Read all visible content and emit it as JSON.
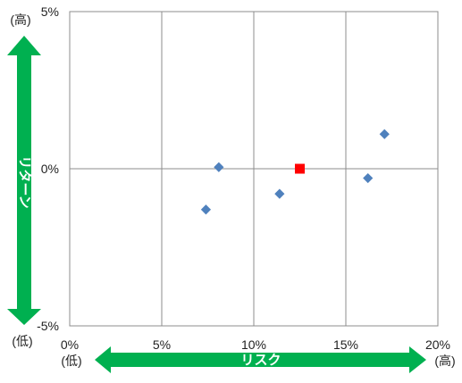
{
  "chart_data": {
    "type": "scatter",
    "title": "",
    "xlabel": "リスク",
    "ylabel": "リターン",
    "xlim": [
      0,
      20
    ],
    "ylim": [
      -5,
      5
    ],
    "x_ticks": [
      "0%",
      "5%",
      "10%",
      "15%",
      "20%"
    ],
    "y_ticks": [
      "5%",
      "0%",
      "-5%"
    ],
    "grid": true,
    "series": [
      {
        "marker": "diamond",
        "color": "#4F81BD",
        "points": [
          {
            "x": 7.4,
            "y": -1.3
          },
          {
            "x": 8.1,
            "y": 0.05
          },
          {
            "x": 11.4,
            "y": -0.8
          },
          {
            "x": 16.2,
            "y": -0.3
          },
          {
            "x": 17.1,
            "y": 1.1
          }
        ]
      },
      {
        "marker": "square",
        "color": "#FF0000",
        "points": [
          {
            "x": 12.5,
            "y": 0.0
          }
        ]
      }
    ],
    "x_axis_arrow": {
      "label": "リスク",
      "low_label": "(低)",
      "high_label": "(高)",
      "color": "#00B050"
    },
    "y_axis_arrow": {
      "label": "リターン",
      "low_label": "(低)",
      "high_label": "(高)",
      "color": "#00B050"
    }
  }
}
